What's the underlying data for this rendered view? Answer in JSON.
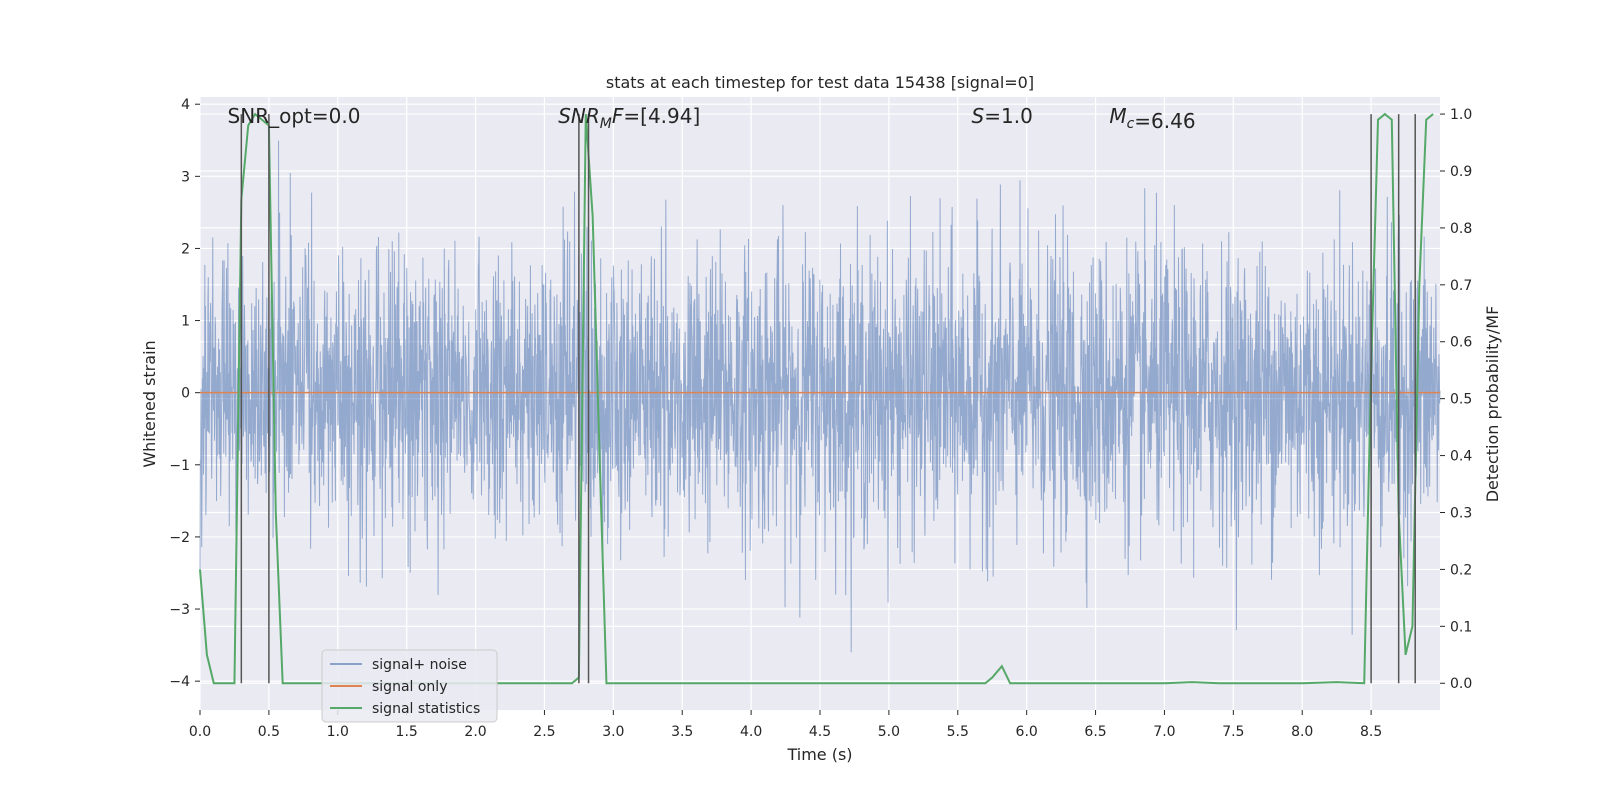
{
  "chart_data": {
    "type": "line",
    "title": "stats at each timestep for test data 15438 [signal=0]",
    "xlabel": "Time (s)",
    "ylabel": "Whitened strain",
    "y2label": "Detection probability/MF",
    "xlim": [
      0.0,
      9.0
    ],
    "ylim": [
      -4.4,
      4.1
    ],
    "y2lim": [
      -0.047,
      1.03
    ],
    "xticks": [
      0.0,
      0.5,
      1.0,
      1.5,
      2.0,
      2.5,
      3.0,
      3.5,
      4.0,
      4.5,
      5.0,
      5.5,
      6.0,
      6.5,
      7.0,
      7.5,
      8.0,
      8.5
    ],
    "xtick_labels": [
      "0.0",
      "0.5",
      "1.0",
      "1.5",
      "2.0",
      "2.5",
      "3.0",
      "3.5",
      "4.0",
      "4.5",
      "5.0",
      "5.5",
      "6.0",
      "6.5",
      "7.0",
      "7.5",
      "8.0",
      "8.5"
    ],
    "yticks": [
      -4,
      -3,
      -2,
      -1,
      0,
      1,
      2,
      3,
      4
    ],
    "ytick_labels": [
      "−4",
      "−3",
      "−2",
      "−1",
      "0",
      "1",
      "2",
      "3",
      "4"
    ],
    "y2ticks": [
      0.0,
      0.1,
      0.2,
      0.3,
      0.4,
      0.5,
      0.6,
      0.7,
      0.8,
      0.9,
      1.0
    ],
    "y2tick_labels": [
      "0.0",
      "0.1",
      "0.2",
      "0.3",
      "0.4",
      "0.5",
      "0.6",
      "0.7",
      "0.8",
      "0.9",
      "1.0"
    ],
    "grid": true,
    "legend_placement": "lower-left",
    "annotations": [
      {
        "prefix": "SNR_opt",
        "sub": "",
        "suffix": "",
        "value": "=0.0",
        "italic": false
      },
      {
        "prefix": "SNR",
        "sub": "M",
        "suffix": "F",
        "value": "=[4.94]",
        "italic": true
      },
      {
        "prefix": "S",
        "sub": "",
        "suffix": "",
        "value": "=1.0",
        "italic": true
      },
      {
        "prefix": "M",
        "sub": "c",
        "suffix": "",
        "value": "=6.46",
        "italic": true
      }
    ],
    "series": [
      {
        "name": "signal+ noise",
        "color": "#4c72b0",
        "axis": "left",
        "kind": "noise",
        "envelope_typical": 1.6,
        "envelope_peak": 3.6
      },
      {
        "name": "signal only",
        "color": "#dd8452",
        "axis": "left",
        "x": [
          0.0,
          9.0
        ],
        "y": [
          0.0,
          0.0
        ]
      },
      {
        "name": "signal statistics",
        "color": "#55a868",
        "axis": "right",
        "x": [
          0.0,
          0.05,
          0.1,
          0.2,
          0.25,
          0.3,
          0.35,
          0.4,
          0.45,
          0.5,
          0.55,
          0.6,
          0.7,
          0.8,
          1.0,
          2.0,
          2.7,
          2.75,
          2.8,
          2.85,
          2.9,
          2.95,
          3.0,
          3.5,
          4.0,
          5.0,
          5.7,
          5.75,
          5.82,
          5.88,
          6.0,
          7.0,
          7.2,
          7.4,
          8.0,
          8.25,
          8.45,
          8.5,
          8.55,
          8.6,
          8.65,
          8.7,
          8.75,
          8.8,
          8.85,
          8.9,
          8.95
        ],
        "y": [
          0.2,
          0.05,
          0.0,
          0.0,
          0.0,
          0.85,
          0.98,
          1.0,
          0.99,
          0.98,
          0.3,
          0.0,
          0.0,
          0.0,
          0.0,
          0.0,
          0.0,
          0.01,
          1.0,
          0.82,
          0.4,
          0.0,
          0.0,
          0.0,
          0.0,
          0.0,
          0.0,
          0.01,
          0.03,
          0.0,
          0.0,
          0.0,
          0.002,
          0.0,
          0.0,
          0.002,
          0.0,
          0.55,
          0.99,
          1.0,
          0.99,
          0.3,
          0.05,
          0.1,
          0.7,
          0.99,
          1.0
        ]
      }
    ],
    "vlines": [
      0.3,
      0.5,
      2.75,
      2.82,
      8.5,
      8.7,
      8.82
    ],
    "vline_color": "#555555"
  }
}
